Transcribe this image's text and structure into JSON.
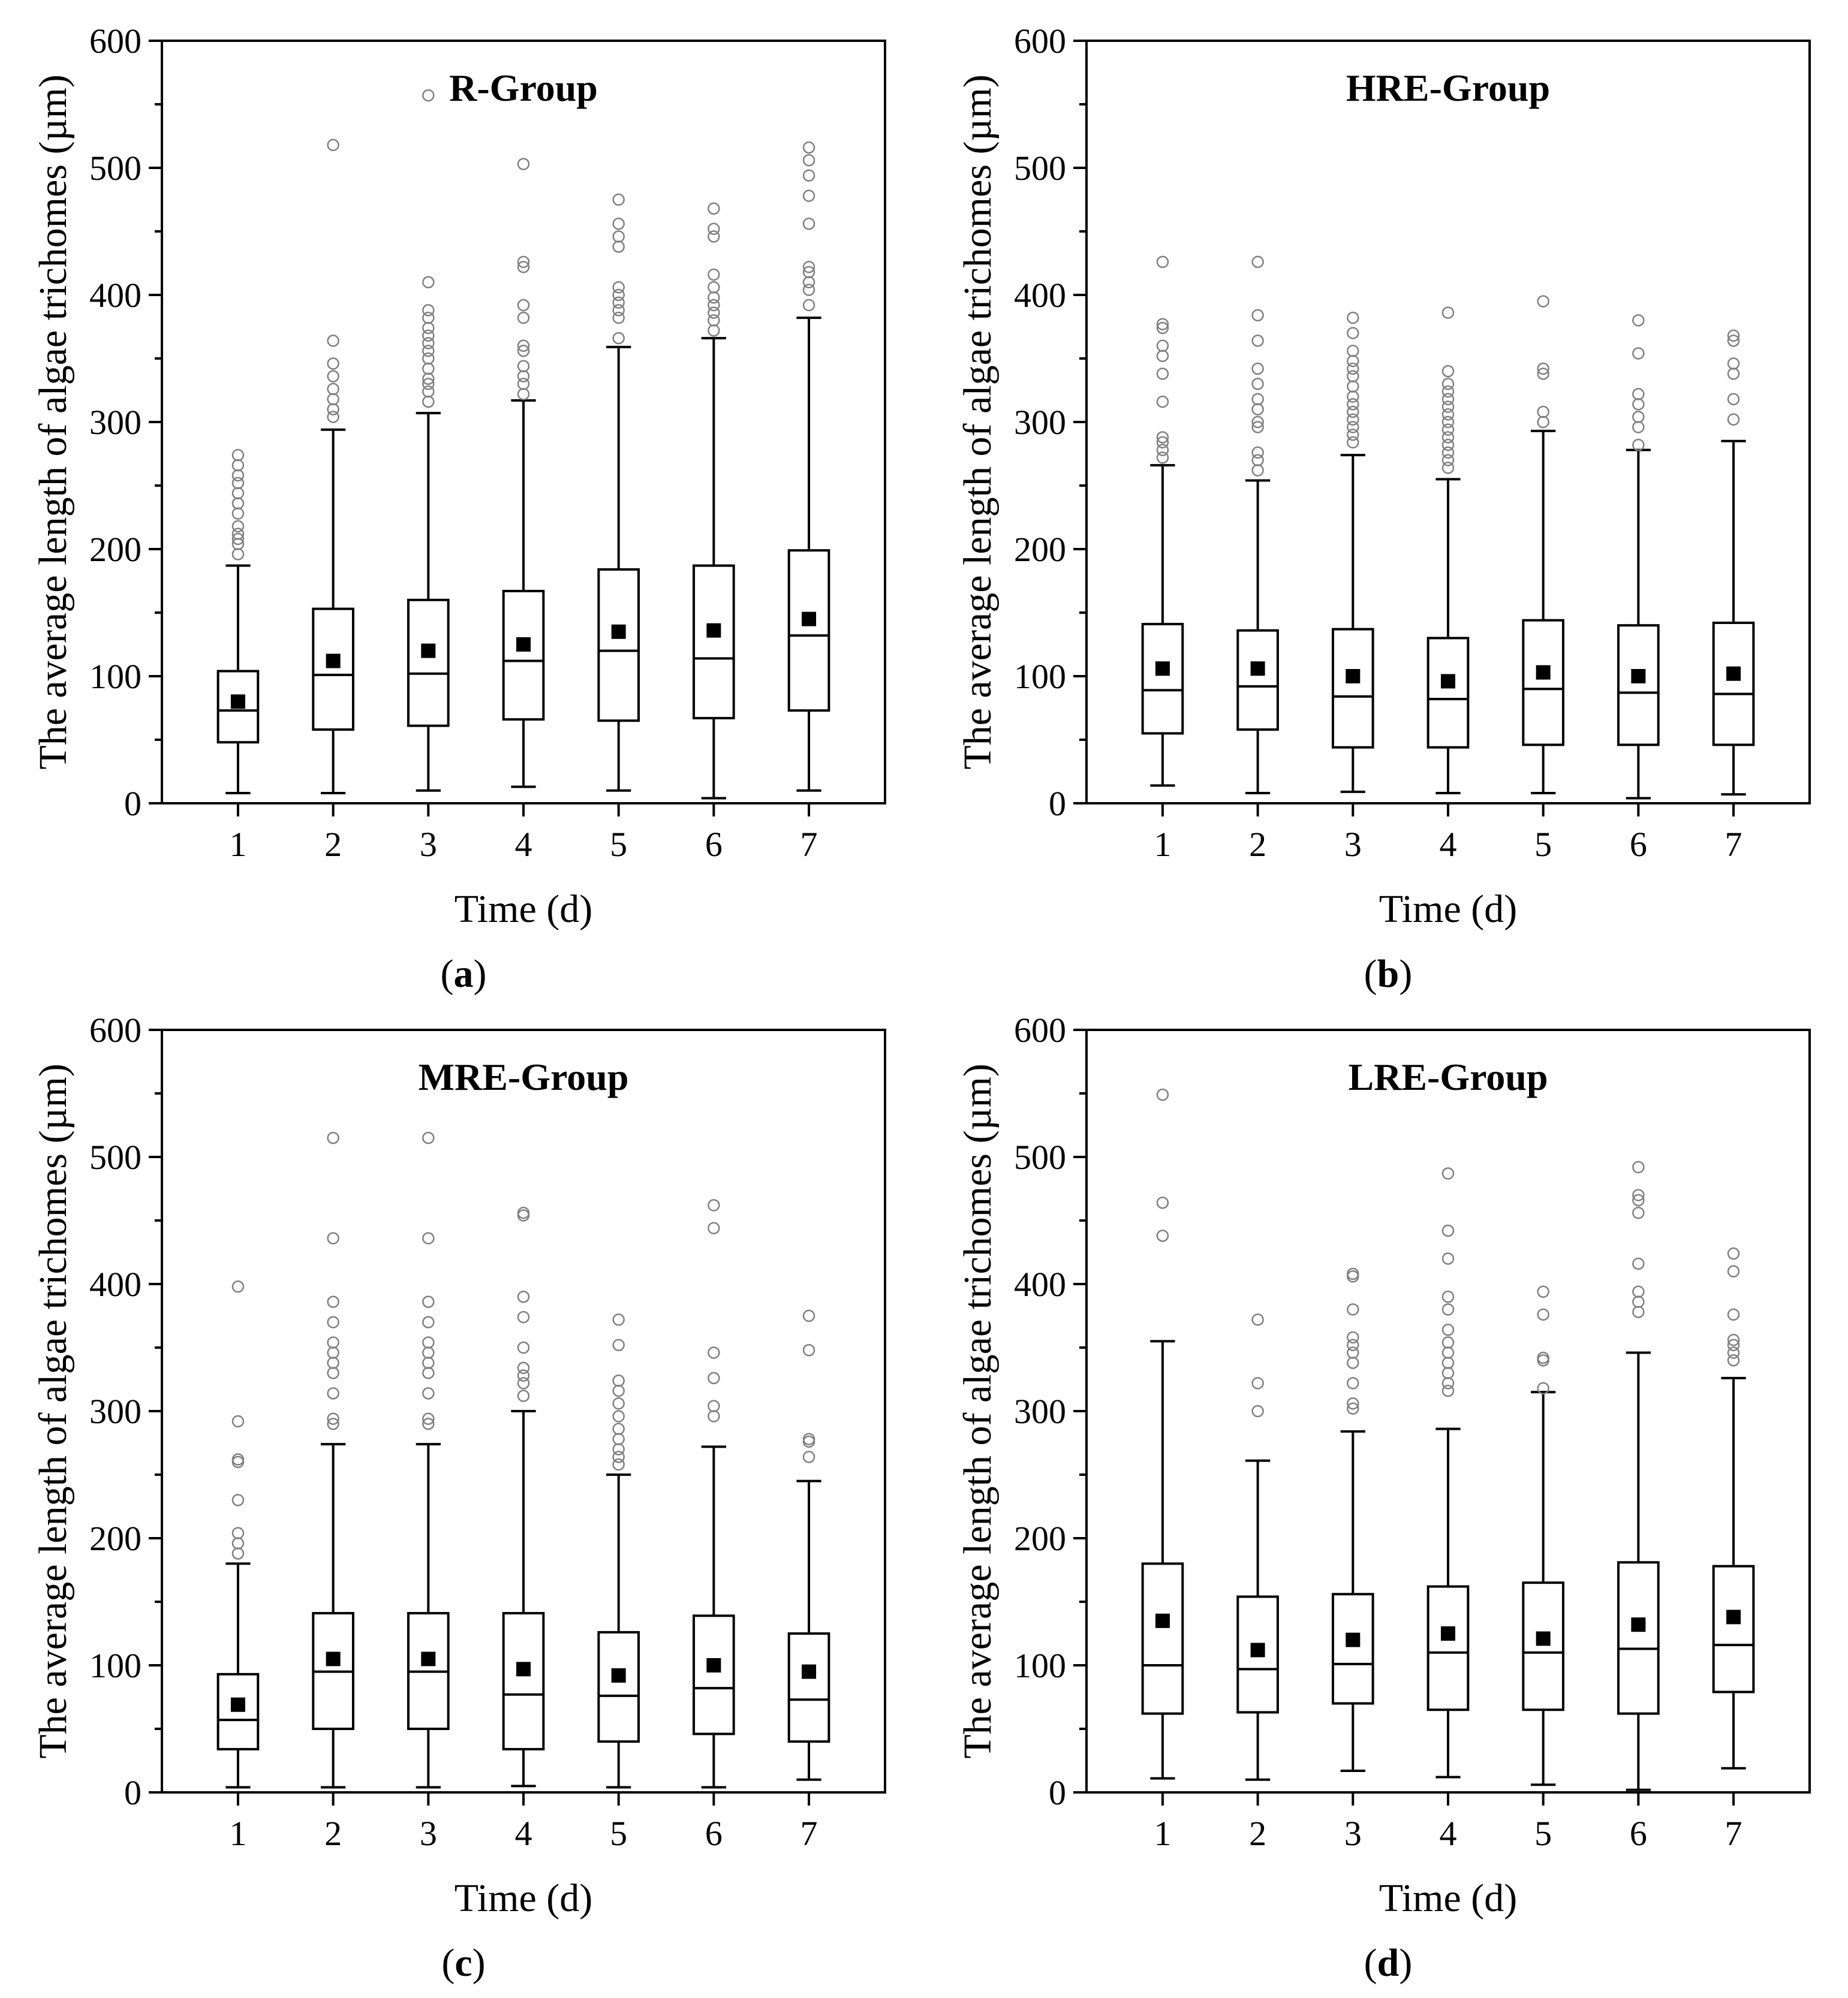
{
  "figure": {
    "chart_data": [
      {
        "type": "box",
        "panel_label": "a",
        "title": "R-Group",
        "xlabel": "Time (d)",
        "ylabel": "The average length of algae trichomes (µm)",
        "ylim": [
          0,
          600
        ],
        "yticks": [
          0,
          100,
          200,
          300,
          400,
          500,
          600
        ],
        "categories": [
          "1",
          "2",
          "3",
          "4",
          "5",
          "6",
          "7"
        ],
        "boxes": [
          {
            "min": 8,
            "q1": 48,
            "median": 73,
            "q3": 104,
            "max": 187,
            "mean": 80,
            "outliers": [
              196,
              204,
              208,
              212,
              218,
              228,
              236,
              244,
              252,
              258,
              266,
              274
            ]
          },
          {
            "min": 8,
            "q1": 58,
            "median": 101,
            "q3": 153,
            "max": 294,
            "mean": 112,
            "outliers": [
              304,
              310,
              318,
              326,
              336,
              346,
              364,
              518
            ]
          },
          {
            "min": 10,
            "q1": 61,
            "median": 102,
            "q3": 160,
            "max": 307,
            "mean": 120,
            "outliers": [
              316,
              324,
              330,
              334,
              342,
              350,
              356,
              362,
              368,
              374,
              382,
              388,
              410,
              557
            ]
          },
          {
            "min": 13,
            "q1": 66,
            "median": 112,
            "q3": 167,
            "max": 317,
            "mean": 125,
            "outliers": [
              322,
              330,
              336,
              344,
              356,
              360,
              382,
              392,
              422,
              426,
              503
            ]
          },
          {
            "min": 10,
            "q1": 65,
            "median": 120,
            "q3": 184,
            "max": 359,
            "mean": 135,
            "outliers": [
              366,
              382,
              388,
              394,
              400,
              406,
              438,
              446,
              456,
              475
            ]
          },
          {
            "min": 4,
            "q1": 67,
            "median": 114,
            "q3": 187,
            "max": 366,
            "mean": 136,
            "outliers": [
              372,
              380,
              386,
              392,
              398,
              406,
              416,
              446,
              452,
              468
            ]
          },
          {
            "min": 10,
            "q1": 73,
            "median": 132,
            "q3": 199,
            "max": 382,
            "mean": 145,
            "outliers": [
              392,
              404,
              410,
              418,
              422,
              456,
              478,
              494,
              506,
              516
            ]
          }
        ]
      },
      {
        "type": "box",
        "panel_label": "b",
        "title": "HRE-Group",
        "xlabel": "Time (d)",
        "ylabel": "The average length of algae trichomes (µm)",
        "ylim": [
          0,
          600
        ],
        "yticks": [
          0,
          100,
          200,
          300,
          400,
          500,
          600
        ],
        "categories": [
          "1",
          "2",
          "3",
          "4",
          "5",
          "6",
          "7"
        ],
        "boxes": [
          {
            "min": 14,
            "q1": 55,
            "median": 89,
            "q3": 141,
            "max": 266,
            "mean": 106,
            "outliers": [
              272,
              278,
              284,
              288,
              316,
              338,
              352,
              360,
              374,
              377,
              426
            ]
          },
          {
            "min": 8,
            "q1": 58,
            "median": 92,
            "q3": 136,
            "max": 254,
            "mean": 106,
            "outliers": [
              262,
              270,
              276,
              296,
              300,
              310,
              318,
              330,
              342,
              364,
              384,
              426
            ]
          },
          {
            "min": 9,
            "q1": 44,
            "median": 84,
            "q3": 137,
            "max": 274,
            "mean": 100,
            "outliers": [
              284,
              290,
              296,
              302,
              308,
              314,
              320,
              328,
              336,
              342,
              348,
              356,
              370,
              382
            ]
          },
          {
            "min": 8,
            "q1": 44,
            "median": 82,
            "q3": 130,
            "max": 255,
            "mean": 96,
            "outliers": [
              264,
              270,
              276,
              282,
              288,
              294,
              300,
              306,
              312,
              318,
              324,
              330,
              340,
              386
            ]
          },
          {
            "min": 8,
            "q1": 46,
            "median": 90,
            "q3": 144,
            "max": 293,
            "mean": 103,
            "outliers": [
              300,
              308,
              338,
              342,
              395
            ]
          },
          {
            "min": 4,
            "q1": 46,
            "median": 87,
            "q3": 140,
            "max": 278,
            "mean": 100,
            "outliers": [
              282,
              296,
              304,
              314,
              322,
              354,
              380
            ]
          },
          {
            "min": 7,
            "q1": 46,
            "median": 86,
            "q3": 142,
            "max": 285,
            "mean": 102,
            "outliers": [
              302,
              318,
              338,
              346,
              364,
              368
            ]
          }
        ]
      },
      {
        "type": "box",
        "panel_label": "c",
        "title": "MRE-Group",
        "xlabel": "Time (d)",
        "ylabel": "The average length of algae trichomes (µm)",
        "ylim": [
          0,
          600
        ],
        "yticks": [
          0,
          100,
          200,
          300,
          400,
          500,
          600
        ],
        "categories": [
          "1",
          "2",
          "3",
          "4",
          "5",
          "6",
          "7"
        ],
        "boxes": [
          {
            "min": 4,
            "q1": 34,
            "median": 57,
            "q3": 93,
            "max": 180,
            "mean": 69,
            "outliers": [
              188,
              196,
              204,
              230,
              260,
              262,
              292,
              398
            ]
          },
          {
            "min": 4,
            "q1": 50,
            "median": 95,
            "q3": 141,
            "max": 274,
            "mean": 105,
            "outliers": [
              290,
              294,
              314,
              330,
              338,
              346,
              354,
              370,
              386,
              436,
              515
            ]
          },
          {
            "min": 4,
            "q1": 50,
            "median": 95,
            "q3": 141,
            "max": 274,
            "mean": 105,
            "outliers": [
              290,
              294,
              314,
              330,
              338,
              346,
              354,
              370,
              386,
              436,
              515
            ]
          },
          {
            "min": 5,
            "q1": 34,
            "median": 77,
            "q3": 141,
            "max": 300,
            "mean": 97,
            "outliers": [
              312,
              322,
              328,
              334,
              350,
              374,
              390,
              454,
              456
            ]
          },
          {
            "min": 4,
            "q1": 40,
            "median": 76,
            "q3": 126,
            "max": 250,
            "mean": 92,
            "outliers": [
              258,
              264,
              270,
              278,
              286,
              296,
              306,
              316,
              324,
              352,
              372
            ]
          },
          {
            "min": 4,
            "q1": 46,
            "median": 82,
            "q3": 139,
            "max": 272,
            "mean": 100,
            "outliers": [
              296,
              304,
              326,
              346,
              444,
              462
            ]
          },
          {
            "min": 10,
            "q1": 40,
            "median": 73,
            "q3": 125,
            "max": 245,
            "mean": 95,
            "outliers": [
              264,
              276,
              278,
              348,
              375
            ]
          }
        ]
      },
      {
        "type": "box",
        "panel_label": "d",
        "title": "LRE-Group",
        "xlabel": "Time (d)",
        "ylabel": "The average length of algae trichomes (µm)",
        "ylim": [
          0,
          600
        ],
        "yticks": [
          0,
          100,
          200,
          300,
          400,
          500,
          600
        ],
        "categories": [
          "1",
          "2",
          "3",
          "4",
          "5",
          "6",
          "7"
        ],
        "boxes": [
          {
            "min": 11,
            "q1": 62,
            "median": 100,
            "q3": 180,
            "max": 355,
            "mean": 135,
            "outliers": [
              438,
              464,
              549
            ]
          },
          {
            "min": 10,
            "q1": 63,
            "median": 97,
            "q3": 154,
            "max": 261,
            "mean": 112,
            "outliers": [
              300,
              322,
              372
            ]
          },
          {
            "min": 17,
            "q1": 70,
            "median": 101,
            "q3": 156,
            "max": 284,
            "mean": 120,
            "outliers": [
              302,
              306,
              322,
              338,
              346,
              352,
              358,
              380,
              406,
              408
            ]
          },
          {
            "min": 12,
            "q1": 65,
            "median": 110,
            "q3": 162,
            "max": 286,
            "mean": 125,
            "outliers": [
              316,
              322,
              330,
              338,
              346,
              354,
              364,
              380,
              390,
              420,
              442,
              487
            ]
          },
          {
            "min": 6,
            "q1": 65,
            "median": 110,
            "q3": 165,
            "max": 315,
            "mean": 121,
            "outliers": [
              318,
              340,
              342,
              376,
              394
            ]
          },
          {
            "min": 2,
            "q1": 62,
            "median": 113,
            "q3": 181,
            "max": 346,
            "mean": 132,
            "outliers": [
              378,
              386,
              394,
              416,
              456,
              466,
              470,
              492
            ]
          },
          {
            "min": 19,
            "q1": 79,
            "median": 116,
            "q3": 178,
            "max": 326,
            "mean": 138,
            "outliers": [
              340,
              346,
              352,
              356,
              376,
              410,
              424
            ]
          }
        ]
      }
    ]
  }
}
